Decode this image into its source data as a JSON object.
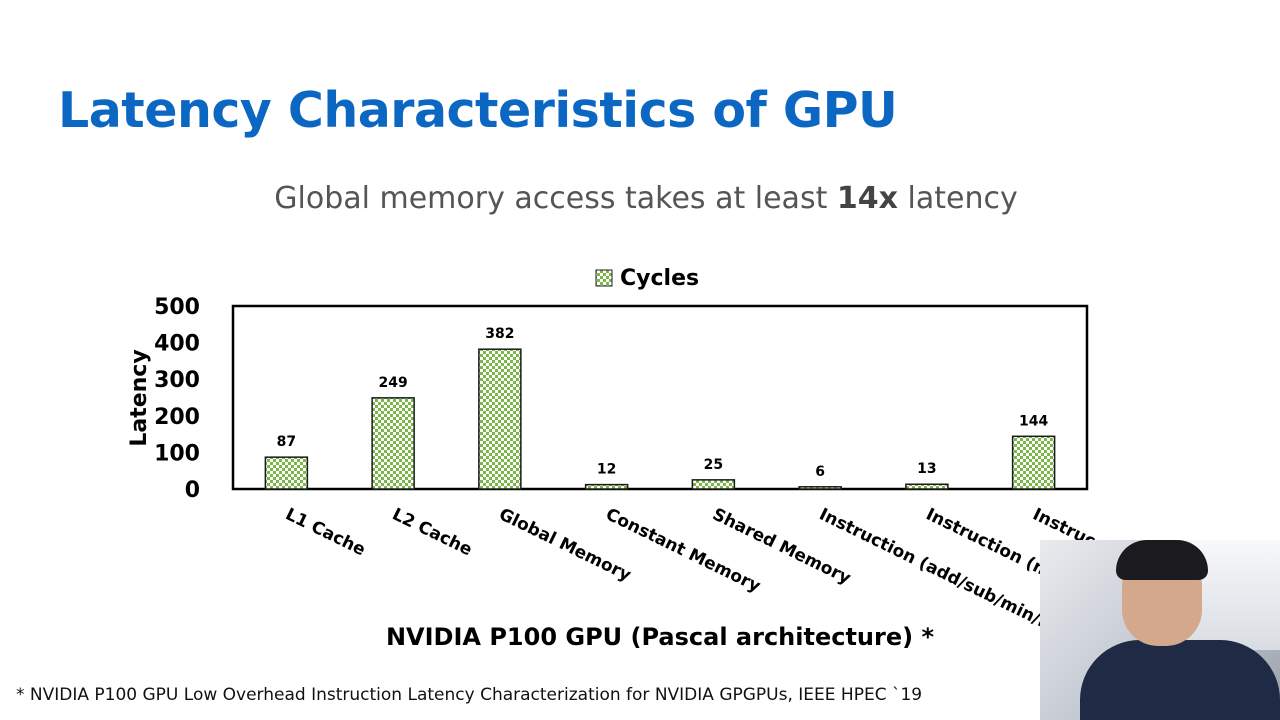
{
  "slide": {
    "title": "Latency Characteristics of GPU",
    "subtitle_pre": "Global memory access takes at least ",
    "subtitle_bold": "14x",
    "subtitle_post": " latency",
    "footnote": "* NVIDIA P100 GPU Low Overhead Instruction Latency Characterization for NVIDIA GPGPUs, IEEE HPEC `19",
    "colors": {
      "title": "#0b67c2",
      "bar_green": "#7ab648"
    }
  },
  "webcam": {
    "icon": "presenter-video"
  },
  "chart_data": {
    "type": "bar",
    "title": "",
    "xlabel": "NVIDIA P100 GPU (Pascal architecture) *",
    "ylabel": "Latency",
    "ylim": [
      0,
      500
    ],
    "yticks": [
      0,
      100,
      200,
      300,
      400,
      500
    ],
    "categories": [
      "L1 Cache",
      "L2 Cache",
      "Global Memory",
      "Constant Memory",
      "Shared Memory",
      "Instruction (add/sub/min/max)",
      "Instruction (mul)",
      "Instruction"
    ],
    "category_labels_shown": [
      "L1 Cache",
      "L2 Cache",
      "Global Memory",
      "Constant Memory",
      "Shared Memory",
      "Instruction (add/sub/min/m",
      "Instruction (m",
      "Instruc"
    ],
    "series": [
      {
        "name": "Cycles",
        "values": [
          87,
          249,
          382,
          12,
          25,
          6,
          13,
          144
        ]
      }
    ],
    "data_labels": [
      "87",
      "249",
      "382",
      "12",
      "25",
      "6",
      "13",
      "144"
    ],
    "legend": "top-center",
    "grid": false
  }
}
